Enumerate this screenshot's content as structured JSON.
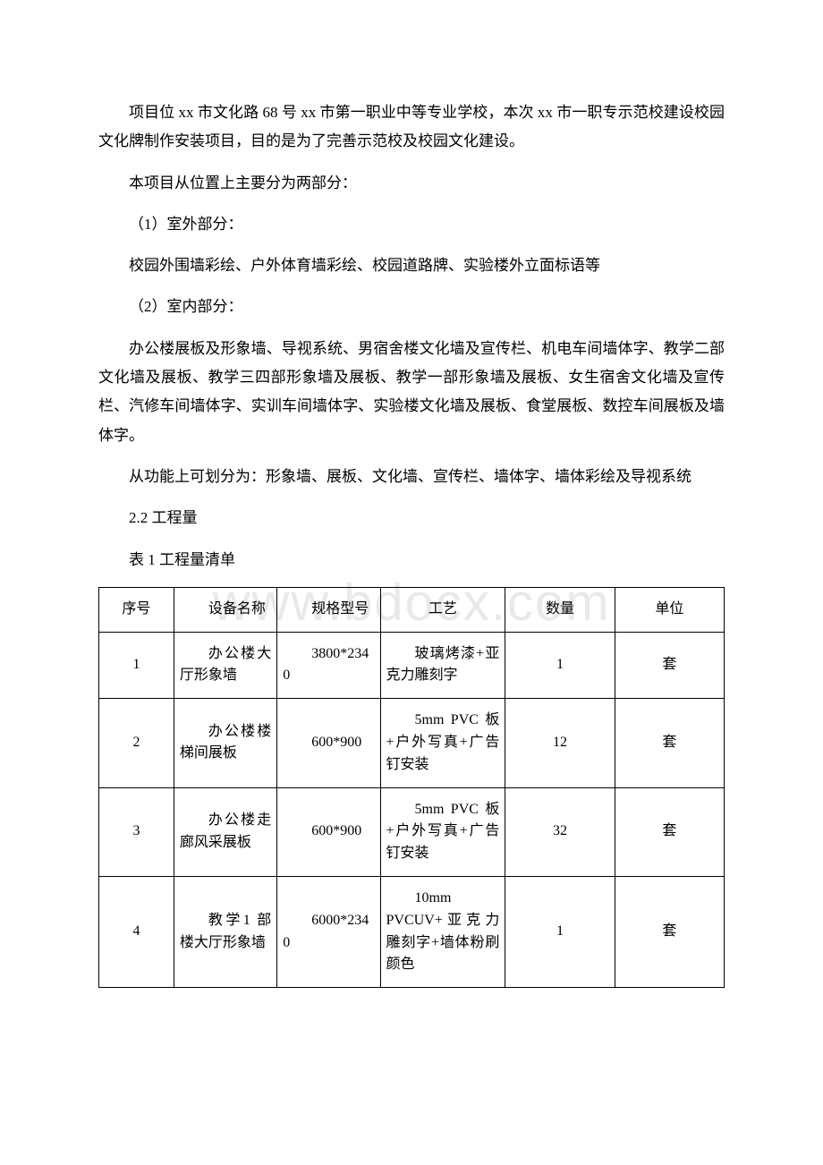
{
  "watermark": "www.bdocx.com",
  "paragraphs": {
    "p1": "项目位 xx 市文化路 68 号 xx 市第一职业中等专业学校，本次 xx 市一职专示范校建设校园文化牌制作安装项目，目的是为了完善示范校及校园文化建设。",
    "p2": "本项目从位置上主要分为两部分：",
    "p3": "（1）室外部分：",
    "p4": "校园外围墙彩绘、户外体育墙彩绘、校园道路牌、实验楼外立面标语等",
    "p5": "（2）室内部分：",
    "p6": "办公楼展板及形象墙、导视系统、男宿舍楼文化墙及宣传栏、机电车间墙体字、教学二部文化墙及展板、教学三四部形象墙及展板、教学一部形象墙及展板、女生宿舍文化墙及宣传栏、汽修车间墙体字、实训车间墙体字、实验楼文化墙及展板、食堂展板、数控车间展板及墙体字。",
    "p7": "从功能上可划分为：形象墙、展板、文化墙、宣传栏、墙体字、墙体彩绘及导视系统",
    "p8": "2.2 工程量",
    "p9": "表 1 工程量清单"
  },
  "table": {
    "columns": {
      "seq": "序号",
      "name": "设备名称",
      "spec": "规格型号",
      "proc": "工艺",
      "qty": "数量",
      "unit": "单位"
    },
    "rows": [
      {
        "seq": "1",
        "name": "办公楼大厅形象墙",
        "spec": "3800*2340",
        "proc": "玻璃烤漆+亚克力雕刻字",
        "qty": "1",
        "unit": "套"
      },
      {
        "seq": "2",
        "name": "办公楼楼梯间展板",
        "spec": "600*900",
        "proc": "5mm PVC 板+户外写真+广告钉安装",
        "qty": "12",
        "unit": "套"
      },
      {
        "seq": "3",
        "name": "办公楼走廊风采展板",
        "spec": "600*900",
        "proc": "5mm PVC 板+户外写真+广告钉安装",
        "qty": "32",
        "unit": "套"
      },
      {
        "seq": "4",
        "name": "教学1 部楼大厅形象墙",
        "spec": "6000*2340",
        "proc": "10mm PVCUV+亚克力雕刻字+墙体粉刷颜色",
        "qty": "1",
        "unit": "套"
      }
    ]
  }
}
